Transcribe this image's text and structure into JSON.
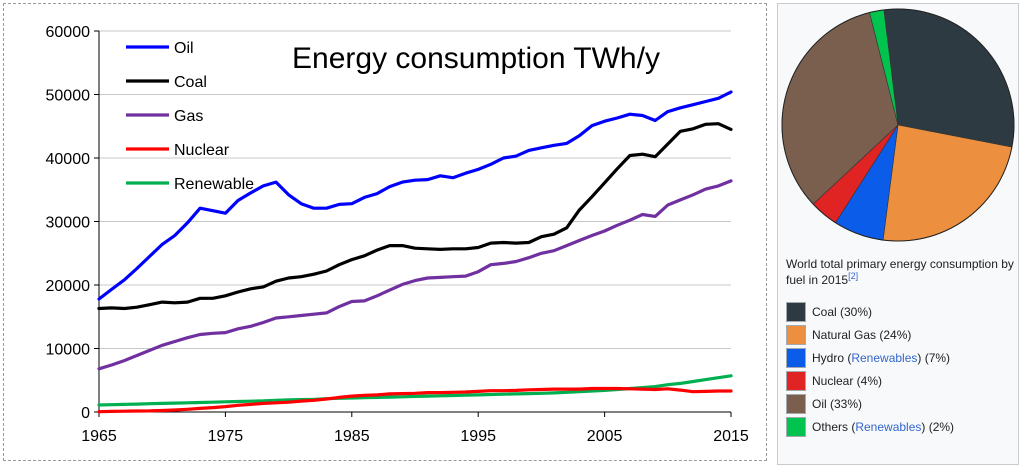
{
  "chart_data": [
    {
      "type": "line",
      "title": "Energy consumption TWh/y",
      "xlabel": "",
      "ylabel": "",
      "xlim": [
        1965,
        2015
      ],
      "ylim": [
        0,
        60000
      ],
      "x_ticks": [
        "1965",
        "1975",
        "1985",
        "1995",
        "2005",
        "2015"
      ],
      "y_ticks": [
        "0",
        "10000",
        "20000",
        "30000",
        "40000",
        "50000",
        "60000"
      ],
      "grid": "horizontal",
      "legend": "top-left",
      "x": [
        1965,
        1966,
        1967,
        1968,
        1969,
        1970,
        1971,
        1972,
        1973,
        1974,
        1975,
        1976,
        1977,
        1978,
        1979,
        1980,
        1981,
        1982,
        1983,
        1984,
        1985,
        1986,
        1987,
        1988,
        1989,
        1990,
        1991,
        1992,
        1993,
        1994,
        1995,
        1996,
        1997,
        1998,
        1999,
        2000,
        2001,
        2002,
        2003,
        2004,
        2005,
        2006,
        2007,
        2008,
        2009,
        2010,
        2011,
        2012,
        2013,
        2014,
        2015
      ],
      "series": [
        {
          "name": "Oil",
          "color": "#0000ff",
          "values": [
            17800,
            19300,
            20800,
            22600,
            24500,
            26400,
            27800,
            29800,
            32100,
            31700,
            31300,
            33300,
            34500,
            35600,
            36200,
            34200,
            32800,
            32100,
            32100,
            32700,
            32800,
            33800,
            34400,
            35500,
            36200,
            36500,
            36600,
            37200,
            36900,
            37600,
            38200,
            39000,
            40000,
            40300,
            41200,
            41600,
            42000,
            42300,
            43500,
            45100,
            45800,
            46300,
            46900,
            46700,
            45900,
            47300,
            47900,
            48400,
            48900,
            49400,
            50400
          ]
        },
        {
          "name": "Coal",
          "color": "#000000",
          "values": [
            16300,
            16400,
            16300,
            16500,
            16900,
            17300,
            17200,
            17300,
            17900,
            17900,
            18300,
            18900,
            19400,
            19700,
            20600,
            21100,
            21300,
            21700,
            22200,
            23200,
            24000,
            24600,
            25500,
            26200,
            26200,
            25800,
            25700,
            25600,
            25700,
            25700,
            25900,
            26600,
            26700,
            26600,
            26700,
            27600,
            28000,
            29000,
            31800,
            33900,
            36100,
            38300,
            40400,
            40600,
            40200,
            42200,
            44200,
            44600,
            45300,
            45400,
            44500
          ]
        },
        {
          "name": "Gas",
          "color": "#7030a0",
          "values": [
            6800,
            7400,
            8100,
            8900,
            9700,
            10500,
            11100,
            11700,
            12200,
            12400,
            12500,
            13100,
            13500,
            14100,
            14800,
            15000,
            15200,
            15400,
            15600,
            16600,
            17400,
            17500,
            18300,
            19200,
            20100,
            20700,
            21100,
            21200,
            21300,
            21400,
            22100,
            23200,
            23400,
            23700,
            24300,
            25000,
            25400,
            26200,
            27000,
            27800,
            28500,
            29400,
            30200,
            31100,
            30800,
            32600,
            33400,
            34200,
            35100,
            35600,
            36400
          ]
        },
        {
          "name": "Nuclear",
          "color": "#ff0000",
          "values": [
            40,
            90,
            120,
            150,
            180,
            230,
            310,
            420,
            560,
            700,
            850,
            1050,
            1200,
            1350,
            1450,
            1550,
            1720,
            1850,
            2050,
            2300,
            2500,
            2620,
            2700,
            2850,
            2900,
            2950,
            3050,
            3050,
            3100,
            3150,
            3250,
            3350,
            3350,
            3400,
            3500,
            3550,
            3600,
            3600,
            3600,
            3700,
            3700,
            3700,
            3650,
            3600,
            3550,
            3650,
            3450,
            3200,
            3250,
            3300,
            3300
          ]
        },
        {
          "name": "Renewable",
          "color": "#00b050",
          "values": [
            1100,
            1150,
            1200,
            1250,
            1300,
            1350,
            1400,
            1450,
            1500,
            1550,
            1600,
            1650,
            1700,
            1750,
            1850,
            1900,
            1950,
            2000,
            2100,
            2150,
            2200,
            2250,
            2300,
            2350,
            2400,
            2450,
            2500,
            2550,
            2600,
            2650,
            2700,
            2750,
            2800,
            2850,
            2900,
            2950,
            3000,
            3100,
            3200,
            3300,
            3400,
            3550,
            3700,
            3850,
            4000,
            4300,
            4500,
            4800,
            5100,
            5400,
            5700
          ]
        }
      ]
    },
    {
      "type": "pie",
      "title": "",
      "categories": [
        "Coal",
        "Natural Gas",
        "Hydro",
        "Nuclear",
        "Oil",
        "Others"
      ],
      "values": [
        30,
        24,
        7,
        4,
        33,
        2
      ],
      "colors": [
        "#2e3a42",
        "#ec8f3e",
        "#0b5ce9",
        "#e02424",
        "#7a5f4f",
        "#00c44d"
      ]
    }
  ],
  "pie_caption": {
    "text": "World total primary energy consumption by fuel in 2015",
    "ref": "[2]"
  },
  "pie_legend": [
    {
      "pre": "Coal (30%)",
      "link": "",
      "post": ""
    },
    {
      "pre": "Natural Gas (24%)",
      "link": "",
      "post": ""
    },
    {
      "pre": "Hydro (",
      "link": "Renewables",
      "post": ") (7%)"
    },
    {
      "pre": "Nuclear (4%)",
      "link": "",
      "post": ""
    },
    {
      "pre": "Oil (33%)",
      "link": "",
      "post": ""
    },
    {
      "pre": "Others (",
      "link": "Renewables",
      "post": ") (2%)"
    }
  ]
}
